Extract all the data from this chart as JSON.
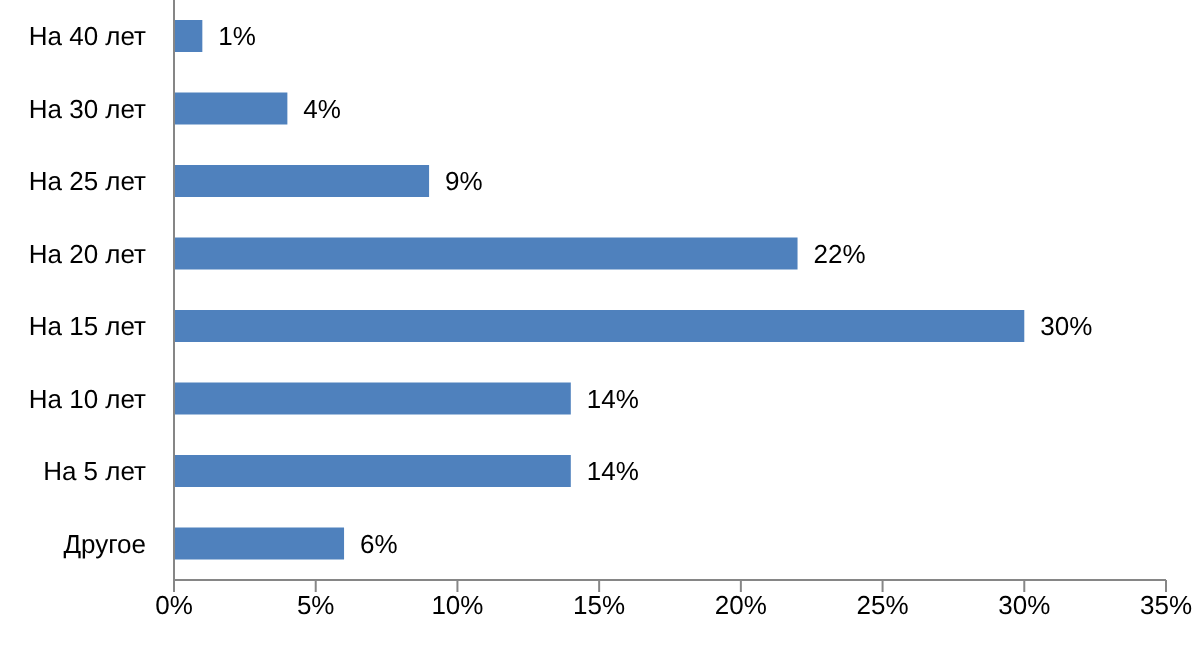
{
  "chart_data": {
    "type": "bar",
    "orientation": "horizontal",
    "categories": [
      "На 40 лет",
      "На 30 лет",
      "На 25 лет",
      "На 20 лет",
      "На 15 лет",
      "На 10 лет",
      "На 5 лет",
      "Другое"
    ],
    "values": [
      1,
      4,
      9,
      22,
      30,
      14,
      14,
      6
    ],
    "value_labels": [
      "1%",
      "4%",
      "9%",
      "22%",
      "30%",
      "14%",
      "14%",
      "6%"
    ],
    "color": "#4f81bd",
    "xlim": [
      0,
      35
    ],
    "xticks": [
      {
        "value": 0,
        "label": "0%"
      },
      {
        "value": 5,
        "label": "5%"
      },
      {
        "value": 10,
        "label": "10%"
      },
      {
        "value": 15,
        "label": "15%"
      },
      {
        "value": 20,
        "label": "20%"
      },
      {
        "value": 25,
        "label": "25%"
      },
      {
        "value": 30,
        "label": "30%"
      },
      {
        "value": 35,
        "label": "35%"
      }
    ],
    "grid": false,
    "legend": false
  }
}
